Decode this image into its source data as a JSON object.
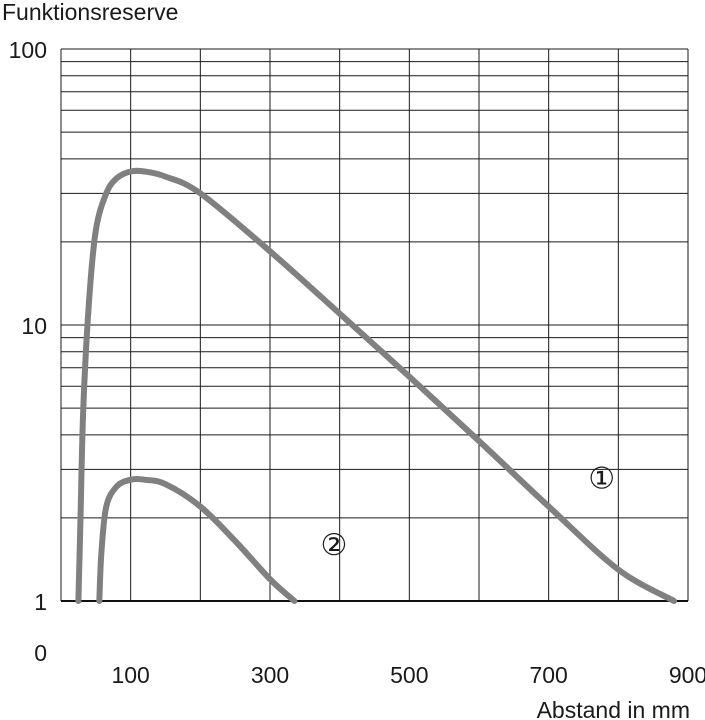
{
  "chart_data": {
    "type": "line",
    "ylabel": "Funktionsreserve",
    "xlabel": "Abstand in mm",
    "y_scale": "log",
    "ylim": [
      1,
      100
    ],
    "xlim": [
      0,
      900
    ],
    "x_ticks": [
      100,
      300,
      500,
      700,
      900
    ],
    "x_tick_labels": [
      "100",
      "300",
      "500",
      "700",
      "900"
    ],
    "y_ticks": [
      1,
      10,
      100
    ],
    "y_tick_labels": [
      "1",
      "10",
      "100"
    ],
    "y_zero_label": "0",
    "grid": true,
    "series": [
      {
        "name": "①",
        "color": "#808080",
        "points": [
          [
            25,
            1.0
          ],
          [
            28,
            2.0
          ],
          [
            32,
            5.0
          ],
          [
            40,
            12.0
          ],
          [
            50,
            22.0
          ],
          [
            65,
            30.0
          ],
          [
            80,
            34.0
          ],
          [
            100,
            36.0
          ],
          [
            120,
            36.0
          ],
          [
            150,
            34.5
          ],
          [
            200,
            30.0
          ],
          [
            300,
            18.5
          ],
          [
            400,
            11.0
          ],
          [
            500,
            6.5
          ],
          [
            600,
            3.8
          ],
          [
            700,
            2.2
          ],
          [
            800,
            1.3
          ],
          [
            880,
            1.0
          ]
        ]
      },
      {
        "name": "②",
        "color": "#808080",
        "points": [
          [
            55,
            1.0
          ],
          [
            58,
            1.5
          ],
          [
            65,
            2.2
          ],
          [
            80,
            2.6
          ],
          [
            100,
            2.75
          ],
          [
            120,
            2.75
          ],
          [
            150,
            2.65
          ],
          [
            200,
            2.2
          ],
          [
            250,
            1.65
          ],
          [
            300,
            1.2
          ],
          [
            335,
            1.0
          ]
        ]
      }
    ]
  }
}
